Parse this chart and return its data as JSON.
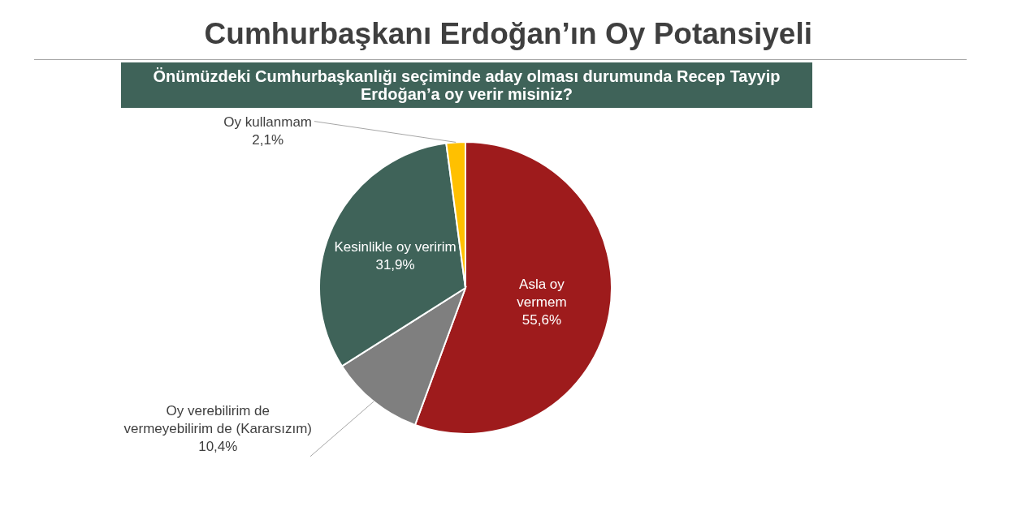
{
  "chart_data": {
    "type": "pie",
    "title": "Cumhurbaşkanı Erdoğan’ın Oy Potansiyeli",
    "subtitle": "Önümüzdeki Cumhurbaşkanlığı seçiminde aday olması durumunda Recep Tayyip Erdoğan’a oy verir misiniz?",
    "categories": [
      "Asla oy vermem",
      "Oy verebilirim de vermeyebilirim de (Kararsızım)",
      "Kesinlikle oy veririm",
      "Oy kullanmam"
    ],
    "values": [
      55.6,
      10.4,
      31.9,
      2.1
    ],
    "value_labels": [
      "55,6%",
      "10,4%",
      "31,9%",
      "2,1%"
    ],
    "colors": [
      "#9e1b1c",
      "#7f7f7f",
      "#3f6359",
      "#ffc000"
    ]
  }
}
